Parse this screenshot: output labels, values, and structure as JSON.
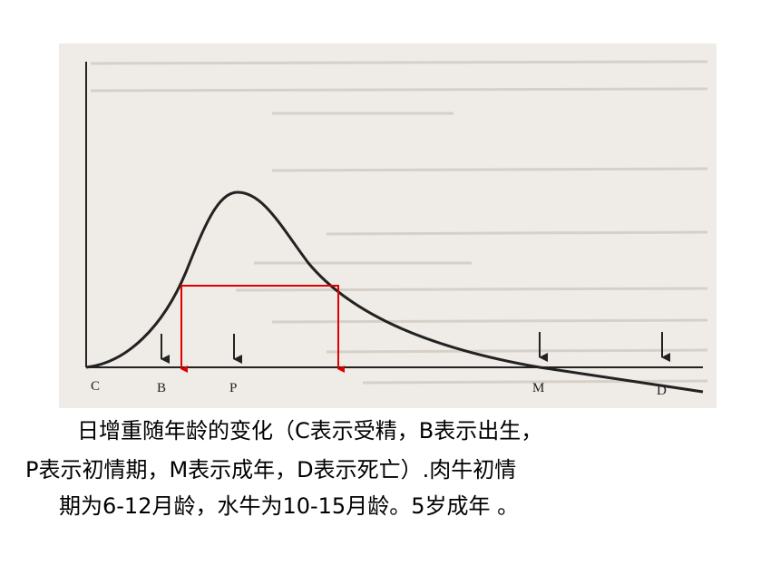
{
  "figure": {
    "labels": [
      "C",
      "B",
      "P",
      "M",
      "D"
    ]
  },
  "caption": {
    "lines": [
      "日增重随年龄的变化（C表示受精，B表示出生，",
      "P表示初情期，M表示成年，D表示死亡）.肉牛初情",
      "期为6-12月龄，水牛为10-15月龄。5岁成年 。"
    ]
  }
}
